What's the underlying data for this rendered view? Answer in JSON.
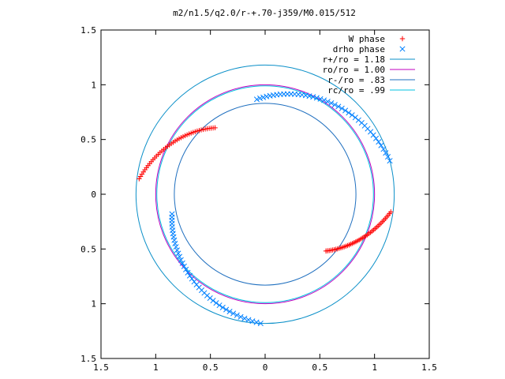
{
  "chart_data": {
    "type": "scatter",
    "title": "m2/n1.5/q2.0/r-+.70-j359/M0.015/512",
    "xlabel": "",
    "ylabel": "",
    "xlim": [
      -1.5,
      1.5
    ],
    "ylim": [
      -1.5,
      1.5
    ],
    "x_ticks": [
      "1.5",
      "1",
      "0.5",
      "0",
      "0.5",
      "1",
      "1.5"
    ],
    "y_ticks": [
      "1.5",
      "1",
      "0.5",
      "0",
      "0.5",
      "1",
      "1.5"
    ],
    "grid": false,
    "legend_position": "top-right",
    "series": [
      {
        "name": "W phase",
        "kind": "points",
        "marker": "plus",
        "color": "#ff0000",
        "arc_degrees": [
          [
            127,
            173
          ],
          [
            -43,
            -8
          ]
        ],
        "radius_at_arc_start": 0.76,
        "radius_at_arc_end": 1.16
      },
      {
        "name": "drho phase",
        "kind": "points",
        "marker": "cross",
        "color": "#0080ff",
        "arc_degrees": [
          [
            95,
            15
          ],
          [
            192,
            268
          ]
        ],
        "radius_at_arc_start": 0.87,
        "radius_at_arc_end": 1.18
      },
      {
        "name": "r+/ro = 1.18",
        "kind": "circle",
        "radius": 1.18,
        "color": "#0a8fc8"
      },
      {
        "name": "ro/ro = 1.00",
        "kind": "circle",
        "radius": 1.0,
        "color": "#c000c0"
      },
      {
        "name": "r-/ro = .83",
        "kind": "circle",
        "radius": 0.83,
        "color": "#1f6fbf"
      },
      {
        "name": "rc/ro = .99",
        "kind": "circle",
        "radius": 0.99,
        "color": "#00c0e0"
      }
    ]
  }
}
